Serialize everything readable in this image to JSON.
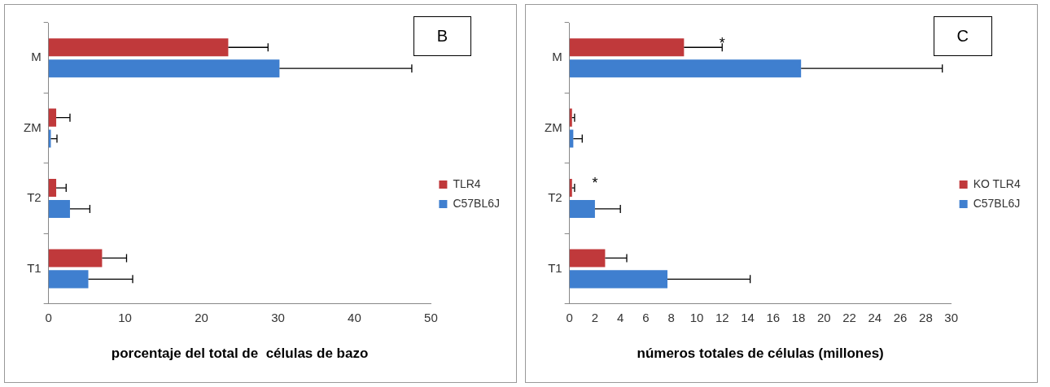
{
  "chart_data": [
    {
      "type": "bar",
      "orientation": "horizontal",
      "categories": [
        "M",
        "ZM",
        "T2",
        "T1"
      ],
      "xlabel": "porcentaje del total de  células de bazo",
      "xlim": [
        0,
        50
      ],
      "xticks": [
        0,
        10,
        20,
        30,
        40,
        50
      ],
      "grid": false,
      "legend": "right",
      "annotations": [
        "B"
      ],
      "series": [
        {
          "name": "TLR4",
          "color": "#c0393b",
          "values": [
            23.5,
            1.0,
            1.0,
            7.0
          ],
          "errors": [
            5.2,
            1.8,
            1.3,
            3.2
          ]
        },
        {
          "name": "C57BL6J",
          "color": "#3f7fcf",
          "values": [
            30.2,
            0.3,
            2.8,
            5.2
          ],
          "errors": [
            17.3,
            0.8,
            2.6,
            5.8
          ]
        }
      ]
    },
    {
      "type": "bar",
      "orientation": "horizontal",
      "categories": [
        "M",
        "ZM",
        "T2",
        "T1"
      ],
      "xlabel": "números totales de células (millones)",
      "xlim": [
        0,
        30
      ],
      "xticks": [
        0,
        2,
        4,
        6,
        8,
        10,
        12,
        14,
        16,
        18,
        20,
        22,
        24,
        26,
        28,
        30
      ],
      "grid": false,
      "legend": "right",
      "annotations": [
        "C",
        {
          "text": "*",
          "x": 12,
          "y": "M"
        },
        {
          "text": "*",
          "x": 2.0,
          "y": "T2"
        }
      ],
      "series": [
        {
          "name": "KO TLR4",
          "color": "#c0393b",
          "values": [
            9.0,
            0.2,
            0.2,
            2.8
          ],
          "errors": [
            3.0,
            0.2,
            0.2,
            1.7
          ]
        },
        {
          "name": "C57BL6J",
          "color": "#3f7fcf",
          "values": [
            18.2,
            0.3,
            2.0,
            7.7
          ],
          "errors": [
            11.1,
            0.7,
            2.0,
            6.5
          ]
        }
      ]
    }
  ]
}
